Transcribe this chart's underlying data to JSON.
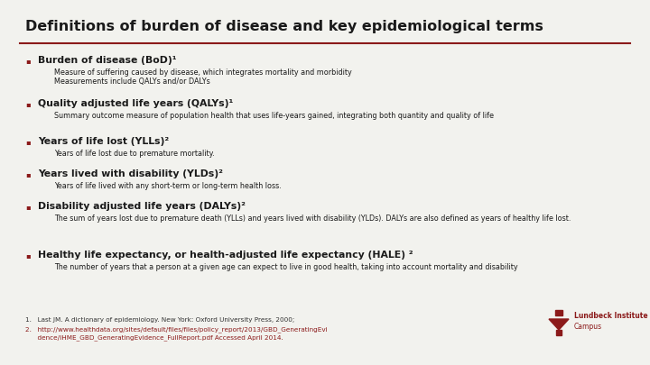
{
  "title": "Definitions of burden of disease and key epidemiological terms",
  "title_color": "#1a1a1a",
  "title_fontsize": 11.5,
  "separator_color": "#8B1A1A",
  "background_color": "#f2f2ee",
  "bullet_color": "#8B1A1A",
  "bullet_char": "▪",
  "items": [
    {
      "heading": "Burden of disease (BoD)¹",
      "sub_lines": [
        "Measure of suffering caused by disease, which integrates mortality and morbidity",
        "Measurements include QALYs and/or DALYs"
      ]
    },
    {
      "heading": "Quality adjusted life years (QALYs)¹",
      "sub_lines": [
        "Summary outcome measure of population health that uses life-years gained, integrating both quantity and quality of life"
      ]
    },
    {
      "heading": "Years of life lost (YLLs)²",
      "sub_lines": [
        "Years of life lost due to premature mortality."
      ]
    },
    {
      "heading": "Years lived with disability (YLDs)²",
      "sub_lines": [
        "Years of life lived with any short-term or long-term health loss."
      ]
    },
    {
      "heading": "Disability adjusted life years (DALYs)²",
      "sub_lines": [
        "The sum of years lost due to premature death (YLLs) and years lived with disability (YLDs). DALYs are also defined as years of healthy life lost."
      ]
    },
    {
      "heading": "Healthy life expectancy, or health-adjusted life expectancy (HALE) ²",
      "sub_lines": [
        "The number of years that a person at a given age can expect to live in good health, taking into account mortality and disability"
      ]
    }
  ],
  "footnote1": "1.   Last JM. A dictionary of epidemiology. New York: Oxford University Press, 2000;",
  "footnote2_link": "2.   http://www.healthdata.org/sites/default/files/files/policy_report/2013/GBD_GeneratingEvi",
  "footnote2_cont": "      dence/IHME_GBD_GeneratingEvidence_FullReport.pdf Accessed April 2014.",
  "logo_text_line1": "Lundbeck Institute",
  "logo_text_line2": "Campus",
  "logo_color": "#8B1A1A",
  "heading_fontsize": 7.8,
  "sub_fontsize": 5.8,
  "footnote_fontsize": 5.2
}
